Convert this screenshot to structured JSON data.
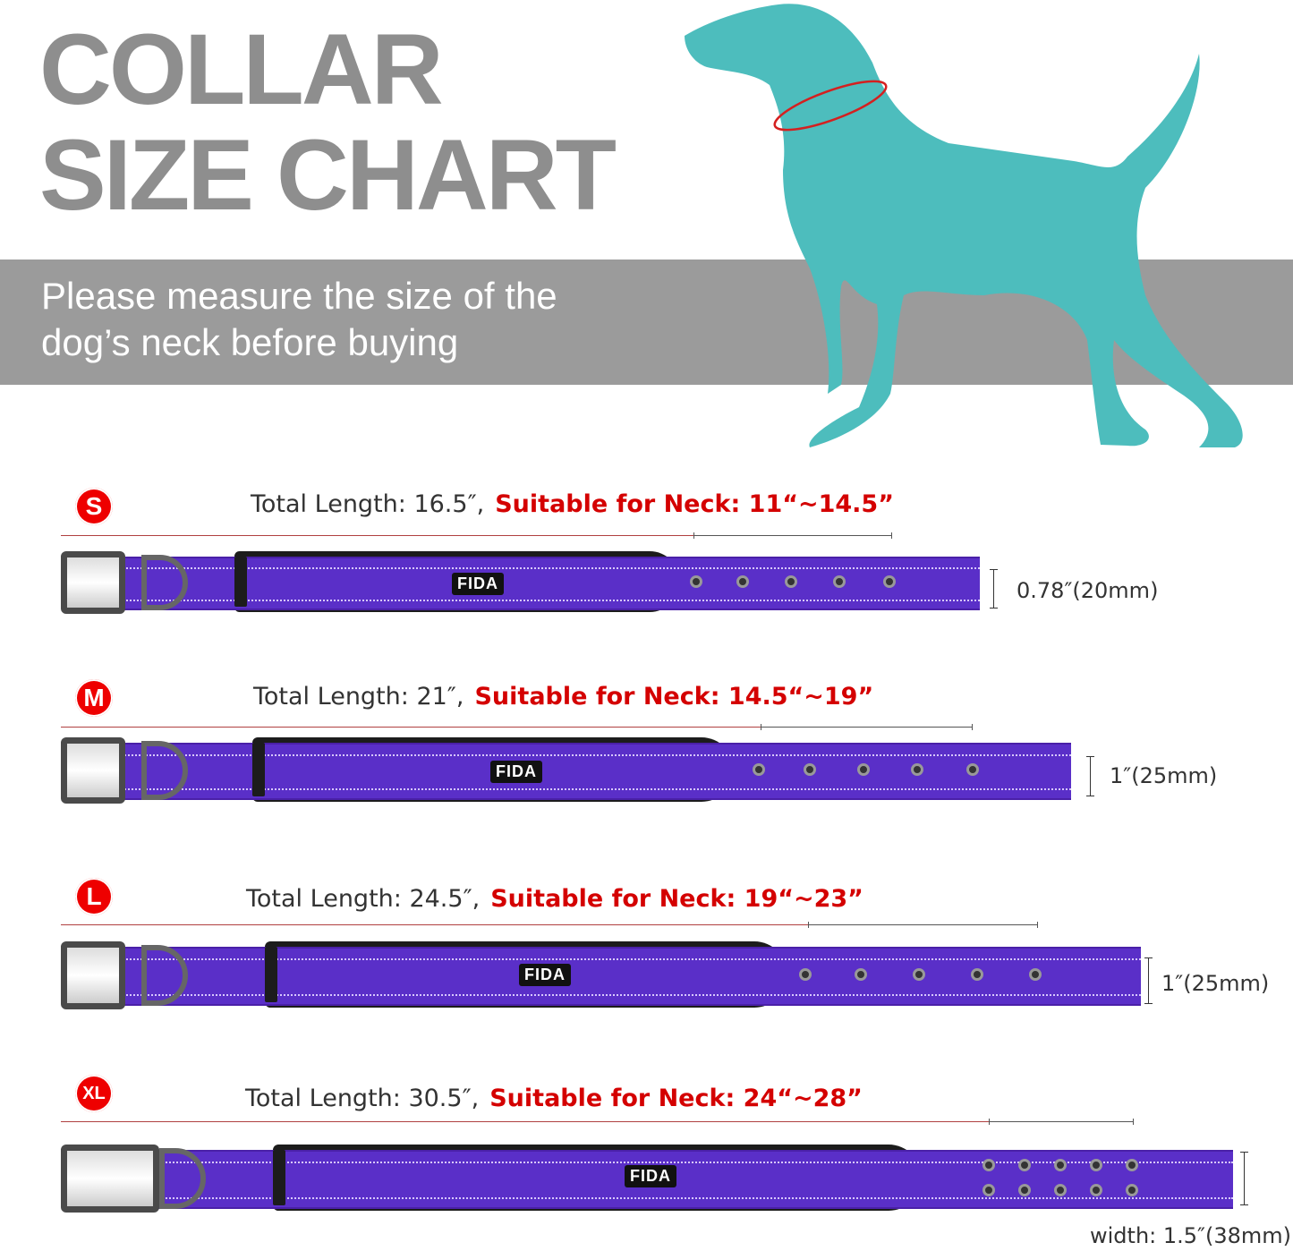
{
  "header": {
    "title_line1": "COLLAR",
    "title_line2": "SIZE CHART"
  },
  "banner": {
    "line1": "Please measure the size of the",
    "line2": "dog’s neck before buying"
  },
  "colors": {
    "title_gray": "#8e8e8e",
    "band_gray": "#9b9b9b",
    "dog_teal": "#4dbdbd",
    "accent_red": "#d40000",
    "collar_purple": "#5a2fc8"
  },
  "icons": {
    "dog": "dog-silhouette-icon",
    "neck_ring": "neck-measure-ring-icon"
  },
  "sizes": [
    {
      "badge": "S",
      "total": "Total Length: 16.5″,",
      "neck": "Suitable for Neck: 11“~14.5”",
      "width": "0.78″(20mm)",
      "logo": "FIDA"
    },
    {
      "badge": "M",
      "total": "Total Length: 21″,",
      "neck": "Suitable for Neck: 14.5“~19”",
      "width": "1″(25mm)",
      "logo": "FIDA"
    },
    {
      "badge": "L",
      "total": "Total Length: 24.5″,",
      "neck": "Suitable for Neck: 19“~23”",
      "width": "1″(25mm)",
      "logo": "FIDA"
    },
    {
      "badge": "XL",
      "total": "Total Length: 30.5″,",
      "neck": "Suitable for Neck: 24“~28”",
      "width": "width: 1.5″(38mm)",
      "logo": "FIDA"
    }
  ]
}
